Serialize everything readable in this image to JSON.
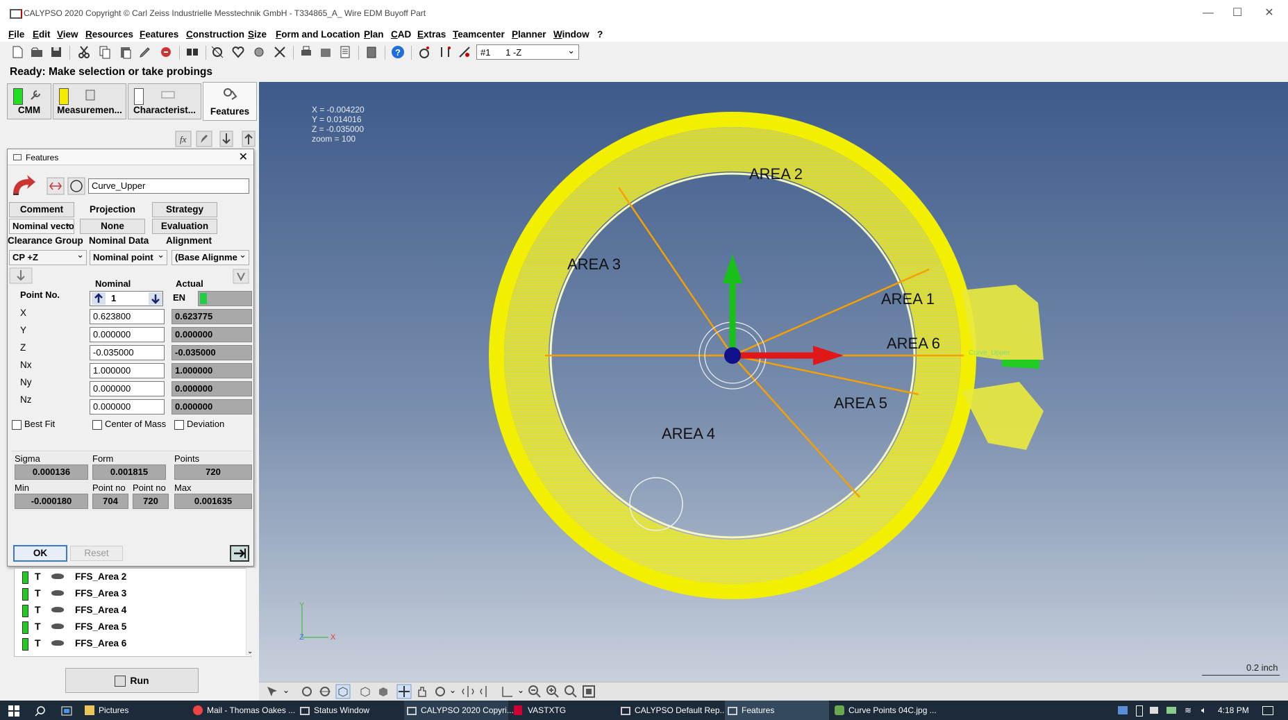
{
  "window": {
    "title": "CALYPSO 2020 Copyright © Carl Zeiss Industrielle Messtechnik GmbH - T334865_A_ Wire EDM Buyoff Part"
  },
  "menu": [
    "File",
    "Edit",
    "View",
    "Resources",
    "Features",
    "Construction",
    "Size",
    "Form and Location",
    "Plan",
    "CAD",
    "Extras",
    "Teamcenter",
    "Planner",
    "Window",
    "?"
  ],
  "toolbar": {
    "stylus_select": "#1      1 -Z"
  },
  "status": {
    "text": "Ready: Make selection or take probings"
  },
  "panel_tabs": [
    {
      "label": "CMM",
      "flag": "#22dd22"
    },
    {
      "label": "Measuremen...",
      "flag": "#f5ea00"
    },
    {
      "label": "Characterist...",
      "flag": "#ffffff"
    },
    {
      "label": "Features",
      "flag": ""
    }
  ],
  "dialog": {
    "title": "Features",
    "feature_name": "Curve_Upper",
    "buttons": {
      "comment": "Comment",
      "projection": "Projection",
      "strategy": "Strategy",
      "none": "None",
      "evaluation": "Evaluation"
    },
    "nominal_vector": "Nominal vecto",
    "labels": {
      "clearance_group": "Clearance Group",
      "nominal_data": "Nominal Data",
      "alignment": "Alignment",
      "nominal": "Nominal",
      "actual": "Actual",
      "point_no": "Point No."
    },
    "clearance_value": "CP +Z",
    "nominal_data_value": "Nominal point",
    "alignment_value": "(Base Alignme",
    "point_no": "1",
    "actual_badge": "EN",
    "rows": [
      {
        "label": "X",
        "nominal": "0.623800",
        "actual": "0.623775"
      },
      {
        "label": "Y",
        "nominal": "0.000000",
        "actual": "0.000000"
      },
      {
        "label": "Z",
        "nominal": "-0.035000",
        "actual": "-0.035000"
      },
      {
        "label": "Nx",
        "nominal": "1.000000",
        "actual": "1.000000"
      },
      {
        "label": "Ny",
        "nominal": "0.000000",
        "actual": "0.000000"
      },
      {
        "label": "Nz",
        "nominal": "0.000000",
        "actual": "0.000000"
      }
    ],
    "checkboxes": {
      "best_fit": "Best Fit",
      "center_of_mass": "Center of Mass",
      "deviation": "Deviation"
    },
    "stats": {
      "sigma_label": "Sigma",
      "sigma": "0.000136",
      "form_label": "Form",
      "form": "0.001815",
      "points_label": "Points",
      "points": "720",
      "min_label": "Min",
      "min": "-0.000180",
      "pointno_label": "Point no",
      "pointno_min": "704",
      "pointno_max": "720",
      "max_label": "Max",
      "max": "0.001635"
    },
    "ok": "OK",
    "reset": "Reset"
  },
  "feature_list": [
    "FFS_Area 2",
    "FFS_Area 3",
    "FFS_Area 4",
    "FFS_Area 5",
    "FFS_Area 6"
  ],
  "run_button": "Run",
  "viewport": {
    "coords": [
      "X =  -0.004220",
      "Y =   0.014016",
      "Z =  -0.035000",
      "zoom = 100"
    ],
    "areas": [
      "AREA 1",
      "AREA 2",
      "AREA 3",
      "AREA 4",
      "AREA 5",
      "AREA 6"
    ],
    "curve_label": "Curve_Upper",
    "scale": "0.2 inch",
    "axis": {
      "y": "Y",
      "z": "Z",
      "x": "X"
    }
  },
  "taskbar": {
    "items": [
      "Pictures",
      "Mail - Thomas Oakes ...",
      "Status Window",
      "CALYPSO 2020 Copyri...",
      "VASTXTG",
      "CALYPSO Default Rep...",
      "Features",
      "Curve Points 04C.jpg ..."
    ],
    "time": "4:18 PM"
  },
  "colors": {
    "curve": "#f2f000",
    "ray": "#f5a000",
    "x_axis": "#e01818",
    "y_axis": "#18c018"
  }
}
